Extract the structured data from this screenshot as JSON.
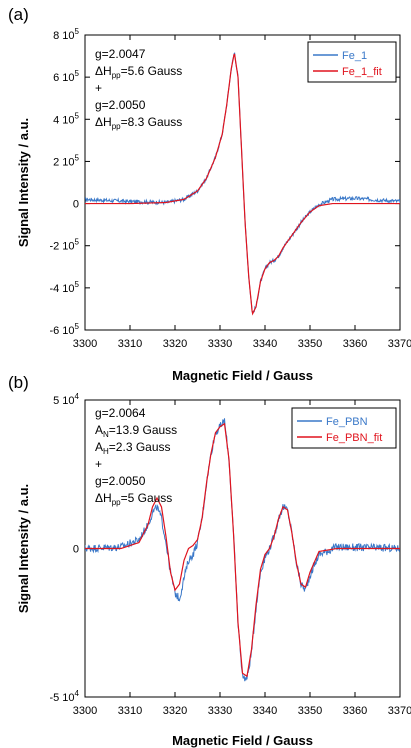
{
  "chart_data": [
    {
      "type": "line",
      "panel_label": "(a)",
      "xlabel": "Magnetic Field / Gauss",
      "ylabel": "Signal Intensity / a.u.",
      "xlim": [
        3300,
        3370
      ],
      "ylim": [
        -600000,
        800000
      ],
      "x_ticks": [
        3300,
        3310,
        3320,
        3330,
        3340,
        3350,
        3360,
        3370
      ],
      "y_ticks": [
        {
          "value": 800000,
          "label": "8 10",
          "exp": "5"
        },
        {
          "value": 600000,
          "label": "6 10",
          "exp": "5"
        },
        {
          "value": 400000,
          "label": "4 10",
          "exp": "5"
        },
        {
          "value": 200000,
          "label": "2 10",
          "exp": "5"
        },
        {
          "value": 0,
          "label": "0",
          "exp": ""
        },
        {
          "value": -200000,
          "label": "-2 10",
          "exp": "5"
        },
        {
          "value": -400000,
          "label": "-4 10",
          "exp": "5"
        },
        {
          "value": -600000,
          "label": "-6 10",
          "exp": "5"
        }
      ],
      "annotation": [
        {
          "base": "g=2.0047",
          "sub": ""
        },
        {
          "base": "ΔH",
          "sub": "pp",
          "rest": "=5.6 Gauss"
        },
        {
          "base": "+",
          "sub": ""
        },
        {
          "base": "g=2.0050",
          "sub": ""
        },
        {
          "base": "ΔH",
          "sub": "pp",
          "rest": "=8.3 Gauss"
        }
      ],
      "legend_position": "top-right",
      "series": [
        {
          "name": "Fe_1",
          "color": "#3a78c8",
          "noise": 9000,
          "x": [
            3300,
            3310,
            3318,
            3322,
            3325,
            3327,
            3329,
            3330.5,
            3331.5,
            3332.5,
            3333.2,
            3334,
            3334.8,
            3335.6,
            3336.4,
            3337.2,
            3338,
            3339,
            3340,
            3341,
            3342,
            3343,
            3344,
            3346,
            3348,
            3350,
            3352,
            3355,
            3360,
            3370
          ],
          "y": [
            20000,
            10000,
            5000,
            20000,
            60000,
            120000,
            220000,
            330000,
            470000,
            640000,
            720000,
            600000,
            250000,
            -100000,
            -350000,
            -520000,
            -490000,
            -370000,
            -310000,
            -280000,
            -270000,
            -250000,
            -210000,
            -150000,
            -90000,
            -40000,
            -5000,
            20000,
            25000,
            10000
          ]
        },
        {
          "name": "Fe_1_fit",
          "color": "#e0141e",
          "noise": 0,
          "x": [
            3300,
            3310,
            3318,
            3322,
            3325,
            3327,
            3329,
            3330.5,
            3331.5,
            3332.5,
            3333.2,
            3334,
            3334.8,
            3335.6,
            3336.4,
            3337.2,
            3338,
            3339,
            3340,
            3341,
            3342,
            3343,
            3344,
            3346,
            3348,
            3350,
            3352,
            3355,
            3360,
            3370
          ],
          "y": [
            0,
            0,
            5000,
            20000,
            60000,
            120000,
            220000,
            330000,
            470000,
            640000,
            715000,
            600000,
            250000,
            -100000,
            -350000,
            -525000,
            -490000,
            -370000,
            -310000,
            -280000,
            -270000,
            -250000,
            -210000,
            -150000,
            -90000,
            -40000,
            -10000,
            0,
            0,
            0
          ]
        }
      ]
    },
    {
      "type": "line",
      "panel_label": "(b)",
      "xlabel": "Magnetic Field / Gauss",
      "ylabel": "Signal Intensity / a.u.",
      "xlim": [
        3300,
        3370
      ],
      "ylim": [
        -50000,
        50000
      ],
      "x_ticks": [
        3300,
        3310,
        3320,
        3330,
        3340,
        3350,
        3360,
        3370
      ],
      "y_ticks": [
        {
          "value": 50000,
          "label": "5 10",
          "exp": "4"
        },
        {
          "value": 0,
          "label": "0",
          "exp": ""
        },
        {
          "value": -50000,
          "label": "-5 10",
          "exp": "4"
        }
      ],
      "annotation": [
        {
          "base": "g=2.0064",
          "sub": ""
        },
        {
          "base": "A",
          "sub": "N",
          "rest": "=13.9 Gauss"
        },
        {
          "base": "A",
          "sub": "H",
          "rest": "=2.3 Gauss"
        },
        {
          "base": "+",
          "sub": ""
        },
        {
          "base": "g=2.0050",
          "sub": ""
        },
        {
          "base": "ΔH",
          "sub": "pp",
          "rest": "=5 Gauss"
        }
      ],
      "legend_position": "top-right",
      "series": [
        {
          "name": "Fe_PBN",
          "color": "#3a78c8",
          "noise": 1300,
          "x": [
            3300,
            3308,
            3312,
            3314,
            3315,
            3316,
            3317,
            3318,
            3319,
            3320,
            3321,
            3322,
            3323,
            3324,
            3325,
            3326,
            3327,
            3328,
            3329,
            3330,
            3331,
            3332,
            3333,
            3334,
            3335,
            3336,
            3337,
            3338,
            3339,
            3340,
            3341,
            3342,
            3343,
            3344,
            3345,
            3346,
            3347,
            3348,
            3349,
            3350,
            3352,
            3356,
            3370
          ],
          "y": [
            0,
            500,
            3000,
            8000,
            12000,
            14000,
            10000,
            2000,
            -8000,
            -15000,
            -17000,
            -10000,
            -4000,
            -2000,
            2000,
            10000,
            22000,
            32000,
            39000,
            41000,
            43000,
            30000,
            5000,
            -25000,
            -43000,
            -44000,
            -35000,
            -20000,
            -8000,
            -3000,
            0,
            4000,
            10000,
            14000,
            13000,
            5000,
            -5000,
            -12000,
            -14000,
            -9000,
            -2000,
            500,
            0
          ]
        },
        {
          "name": "Fe_PBN_fit",
          "color": "#e0141e",
          "noise": 0,
          "x": [
            3300,
            3308,
            3312,
            3314,
            3315,
            3316,
            3317,
            3318,
            3319,
            3320,
            3321,
            3322,
            3323,
            3324,
            3325,
            3326,
            3327,
            3328,
            3329,
            3330,
            3331,
            3332,
            3333,
            3334,
            3335,
            3336,
            3337,
            3338,
            3339,
            3340,
            3341,
            3342,
            3343,
            3344,
            3345,
            3346,
            3347,
            3348,
            3349,
            3350,
            3352,
            3356,
            3370
          ],
          "y": [
            0,
            0,
            2000,
            8000,
            14000,
            17000,
            14000,
            4000,
            -8000,
            -14000,
            -12000,
            -4000,
            0,
            1000,
            3000,
            10000,
            22000,
            32000,
            39000,
            41000,
            42000,
            30000,
            5000,
            -25000,
            -42000,
            -43000,
            -34000,
            -19000,
            -7000,
            -2000,
            0,
            4000,
            10000,
            14000,
            13000,
            5000,
            -5000,
            -12000,
            -13000,
            -8000,
            -1000,
            0,
            0
          ]
        }
      ]
    }
  ]
}
